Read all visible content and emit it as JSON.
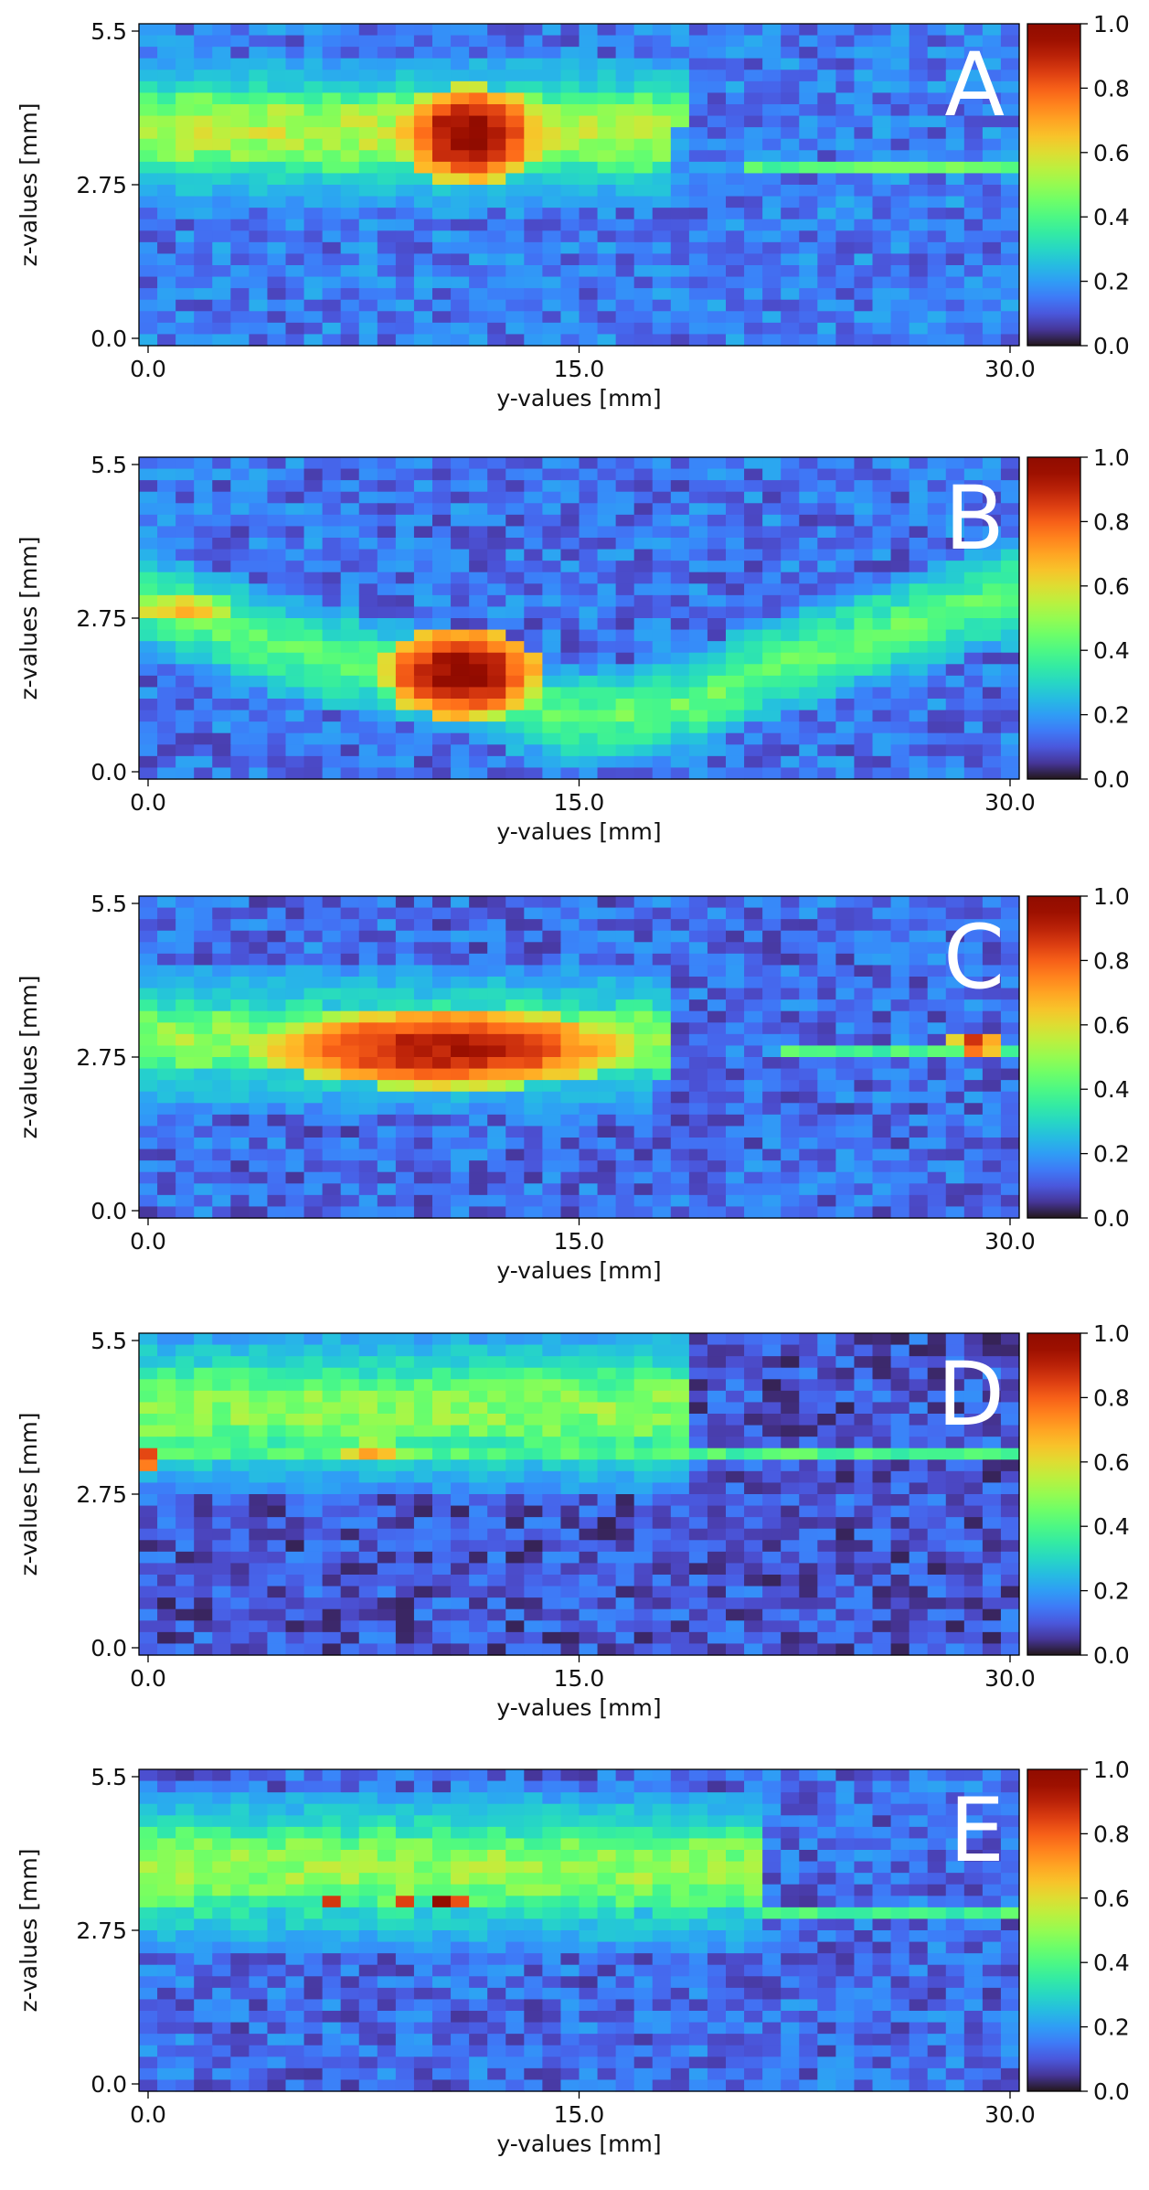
{
  "figure": {
    "colorbar_ticks": [
      "0.0",
      "0.2",
      "0.4",
      "0.6",
      "0.8",
      "1.0"
    ]
  },
  "chart_data": [
    {
      "type": "heatmap",
      "panel_label": "A",
      "xlabel": "y-values [mm]",
      "ylabel": "z-values [mm]",
      "xlim": [
        0,
        30
      ],
      "ylim": [
        0,
        5.5
      ],
      "xticks": [
        "0.0",
        "15.0",
        "30.0"
      ],
      "yticks": [
        "0.0",
        "2.75",
        "5.5"
      ],
      "colorbar": {
        "min": 0,
        "max": 1,
        "ticks": [
          "0.0",
          "0.2",
          "0.4",
          "0.6",
          "0.8",
          "1.0"
        ],
        "colormap": "turbo"
      },
      "grid_shape": {
        "nz": 28,
        "ny": 48
      },
      "features": [
        {
          "kind": "band",
          "y_start": 0,
          "y_end": 19,
          "z_upper": 4.4,
          "z_lower": 2.95,
          "level": 0.55
        },
        {
          "kind": "line",
          "y_start": 19,
          "y_end": 30,
          "z": 3.0,
          "level": 0.42
        },
        {
          "kind": "hotspot",
          "y": 11.3,
          "z": 3.6,
          "level": 0.98,
          "ry": 2.5,
          "rz": 0.85
        },
        {
          "kind": "dip",
          "y": 19.5,
          "z": 2.9,
          "level": 0.15
        }
      ],
      "background_level": 0.15
    },
    {
      "type": "heatmap",
      "panel_label": "B",
      "xlabel": "y-values [mm]",
      "ylabel": "z-values [mm]",
      "xlim": [
        0,
        30
      ],
      "ylim": [
        0,
        5.5
      ],
      "xticks": [
        "0.0",
        "15.0",
        "30.0"
      ],
      "yticks": [
        "0.0",
        "2.75",
        "5.5"
      ],
      "colorbar": {
        "min": 0,
        "max": 1,
        "ticks": [
          "0.0",
          "0.2",
          "0.4",
          "0.6",
          "0.8",
          "1.0"
        ],
        "colormap": "turbo"
      },
      "grid_shape": {
        "nz": 28,
        "ny": 48
      },
      "features": [
        {
          "kind": "curve",
          "points": [
            [
              0,
              3.0
            ],
            [
              6,
              2.1
            ],
            [
              11,
              1.6
            ],
            [
              15,
              1.0
            ],
            [
              19,
              1.3
            ],
            [
              21,
              1.8
            ],
            [
              26,
              2.6
            ],
            [
              30,
              3.2
            ]
          ],
          "width": 0.9,
          "level": 0.45
        },
        {
          "kind": "hotspot",
          "y": 11.0,
          "z": 1.8,
          "level": 0.98,
          "ry": 2.8,
          "rz": 0.8
        },
        {
          "kind": "hotspot",
          "y": 1.5,
          "z": 2.9,
          "level": 0.7,
          "ry": 1.8,
          "rz": 0.25
        }
      ],
      "background_level": 0.14
    },
    {
      "type": "heatmap",
      "panel_label": "C",
      "xlabel": "y-values [mm]",
      "ylabel": "z-values [mm]",
      "xlim": [
        0,
        30
      ],
      "ylim": [
        0,
        5.5
      ],
      "xticks": [
        "0.0",
        "15.0",
        "30.0"
      ],
      "yticks": [
        "0.0",
        "2.75",
        "5.5"
      ],
      "colorbar": {
        "min": 0,
        "max": 1,
        "ticks": [
          "0.0",
          "0.2",
          "0.4",
          "0.6",
          "0.8",
          "1.0"
        ],
        "colormap": "turbo"
      },
      "grid_shape": {
        "nz": 28,
        "ny": 48
      },
      "features": [
        {
          "kind": "band",
          "y_start": 0,
          "y_end": 18,
          "z_upper": 3.7,
          "z_lower": 2.4,
          "level": 0.5
        },
        {
          "kind": "hotspot",
          "y": 10.5,
          "z": 2.9,
          "level": 0.92,
          "ry": 6.5,
          "rz": 0.7
        },
        {
          "kind": "line",
          "y_start": 22,
          "y_end": 30,
          "z": 2.9,
          "level": 0.4
        },
        {
          "kind": "hotspot",
          "y": 28.5,
          "z": 2.95,
          "level": 1.0,
          "ry": 0.9,
          "rz": 0.15
        },
        {
          "kind": "dip",
          "y": 19.0,
          "z": 2.0,
          "level": 0.1
        }
      ],
      "background_level": 0.13
    },
    {
      "type": "heatmap",
      "panel_label": "D",
      "xlabel": "y-values [mm]",
      "ylabel": "z-values [mm]",
      "xlim": [
        0,
        30
      ],
      "ylim": [
        0,
        5.5
      ],
      "xticks": [
        "0.0",
        "15.0",
        "30.0"
      ],
      "yticks": [
        "0.0",
        "2.75",
        "5.5"
      ],
      "colorbar": {
        "min": 0,
        "max": 1,
        "ticks": [
          "0.0",
          "0.2",
          "0.4",
          "0.6",
          "0.8",
          "1.0"
        ],
        "colormap": "turbo"
      },
      "grid_shape": {
        "nz": 28,
        "ny": 48
      },
      "features": [
        {
          "kind": "band",
          "y_start": 0,
          "y_end": 19,
          "z_upper": 5.0,
          "z_lower": 3.4,
          "level": 0.48
        },
        {
          "kind": "line",
          "y_start": 0,
          "y_end": 30,
          "z": 3.5,
          "level": 0.4
        },
        {
          "kind": "hotspot",
          "y": 8.0,
          "z": 3.5,
          "level": 0.78,
          "ry": 1.2,
          "rz": 0.15
        },
        {
          "kind": "hotspot",
          "y": 0.2,
          "z": 3.35,
          "level": 1.0,
          "ry": 0.5,
          "rz": 0.15
        }
      ],
      "background_level": 0.1
    },
    {
      "type": "heatmap",
      "panel_label": "E",
      "xlabel": "y-values [mm]",
      "ylabel": "z-values [mm]",
      "xlim": [
        0,
        30
      ],
      "ylim": [
        0,
        5.5
      ],
      "xticks": [
        "0.0",
        "15.0",
        "30.0"
      ],
      "yticks": [
        "0.0",
        "2.75",
        "5.5"
      ],
      "colorbar": {
        "min": 0,
        "max": 1,
        "ticks": [
          "0.0",
          "0.2",
          "0.4",
          "0.6",
          "0.8",
          "1.0"
        ],
        "colormap": "turbo"
      },
      "grid_shape": {
        "nz": 28,
        "ny": 48
      },
      "features": [
        {
          "kind": "band",
          "y_start": 0,
          "y_end": 21,
          "z_upper": 4.6,
          "z_lower": 3.0,
          "level": 0.5
        },
        {
          "kind": "line",
          "y_start": 21,
          "y_end": 30,
          "z": 3.0,
          "level": 0.38
        },
        {
          "kind": "hotspot",
          "y": 10.5,
          "z": 3.2,
          "level": 1.0,
          "ry": 0.8,
          "rz": 0.15
        },
        {
          "kind": "hotspot",
          "y": 6.5,
          "z": 3.2,
          "level": 0.9,
          "ry": 0.5,
          "rz": 0.15
        },
        {
          "kind": "hotspot",
          "y": 9.0,
          "z": 3.2,
          "level": 0.85,
          "ry": 0.5,
          "rz": 0.15
        },
        {
          "kind": "hotspot",
          "y": 29.0,
          "z": 5.2,
          "level": 0.1,
          "ry": 0.6,
          "rz": 0.3
        }
      ],
      "background_level": 0.13
    }
  ]
}
